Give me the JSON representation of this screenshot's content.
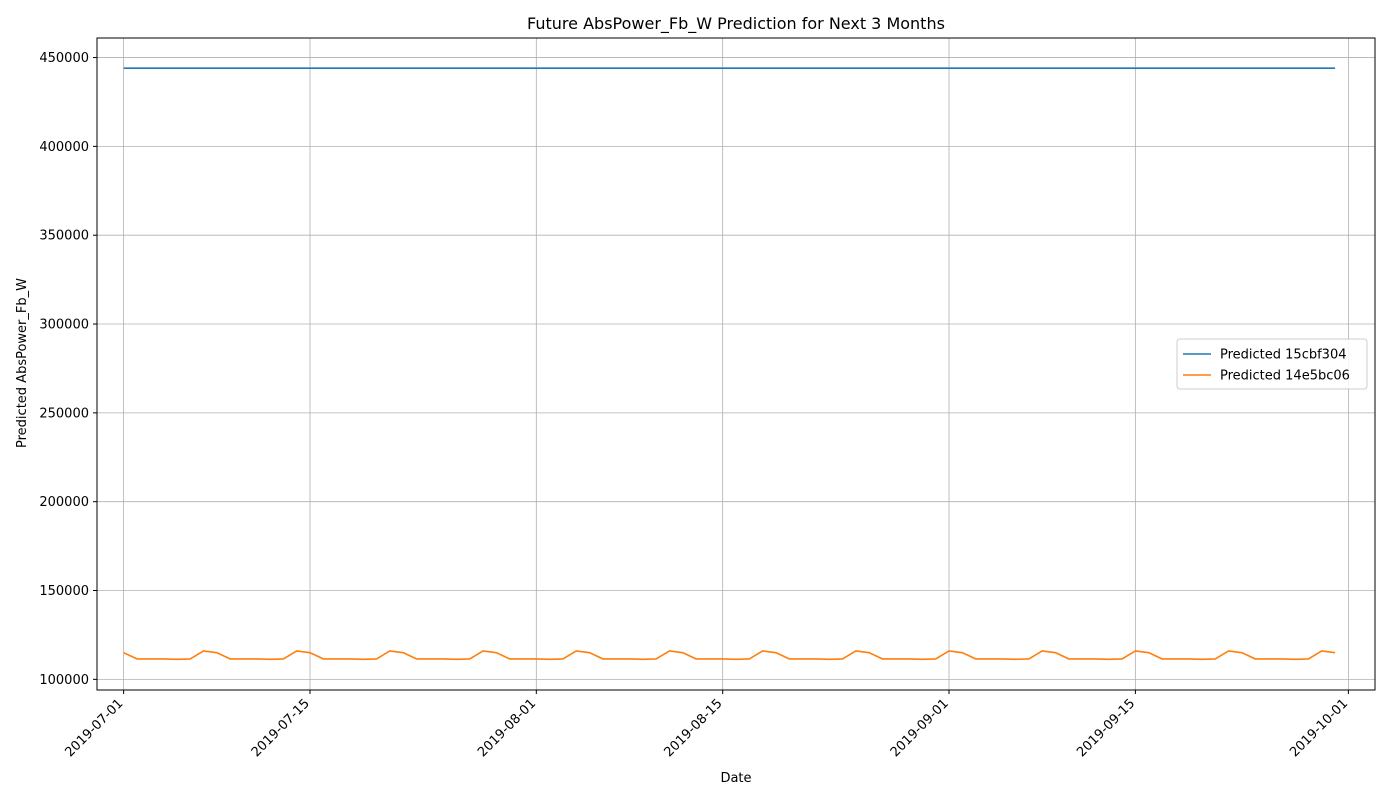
{
  "chart_data": {
    "type": "line",
    "title": "Future AbsPower_Fb_W Prediction for Next 3 Months",
    "xlabel": "Date",
    "ylabel": "Predicted AbsPower_Fb_W",
    "x_start": "2019-07-01",
    "x_end": "2019-09-30",
    "xlim": [
      "2019-06-29",
      "2019-10-03"
    ],
    "ylim": [
      94000,
      461000
    ],
    "x_ticks": [
      "2019-07-01",
      "2019-07-15",
      "2019-08-01",
      "2019-08-15",
      "2019-09-01",
      "2019-09-15",
      "2019-10-01"
    ],
    "y_ticks": [
      100000,
      150000,
      200000,
      250000,
      300000,
      350000,
      400000,
      450000
    ],
    "grid": true,
    "legend_position": "center-right",
    "series": [
      {
        "name": "Predicted 15cbf304",
        "color": "#1f77b4",
        "pattern": [
          444000,
          444000,
          444000,
          444000,
          444000,
          444000,
          444000
        ]
      },
      {
        "name": "Predicted 14e5bc06",
        "color": "#ff7f0e",
        "pattern": [
          115000,
          111500,
          111500,
          111500,
          111300,
          111500,
          116000
        ]
      }
    ]
  }
}
